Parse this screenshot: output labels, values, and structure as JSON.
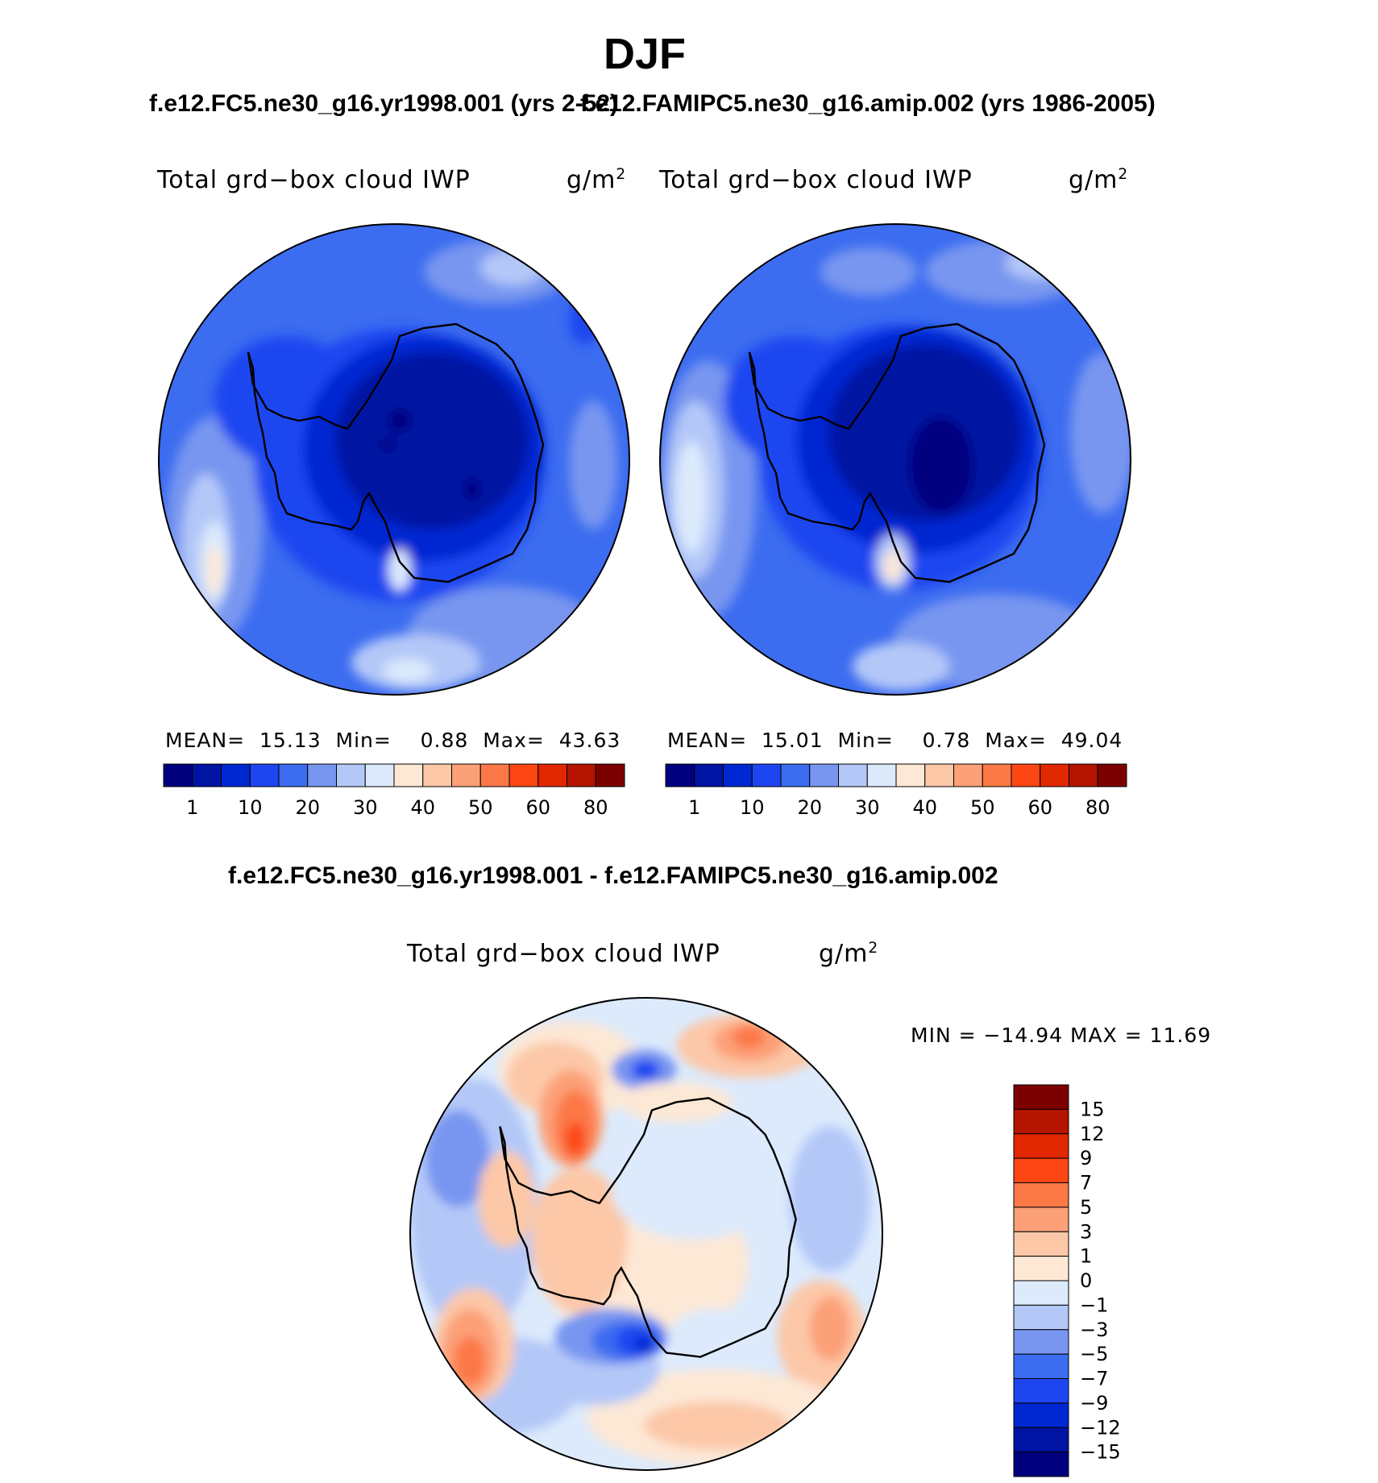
{
  "figure": {
    "title": "DJF",
    "top_left_case": "f.e12.FC5.ne30_g16.yr1998.001 (yrs 2-52)",
    "top_right_case": "f.e12.FAMIPC5.ne30_g16.amip.002 (yrs 1986-2005)",
    "diff_case": "f.e12.FC5.ne30_g16.yr1998.001 - f.e12.FAMIPC5.ne30_g16.amip.002"
  },
  "panels": [
    {
      "variable": "Total grd−box cloud IWP",
      "units": "g/m",
      "units_sup": "2",
      "mean_label": "MEAN=",
      "mean": "15.13",
      "min_label": "Min=",
      "min": "0.88",
      "max_label": "Max=",
      "max": "43.63"
    },
    {
      "variable": "Total grd−box cloud IWP",
      "units": "g/m",
      "units_sup": "2",
      "mean_label": "MEAN=",
      "mean": "15.01",
      "min_label": "Min=",
      "min": "0.78",
      "max_label": "Max=",
      "max": "49.04"
    },
    {
      "variable": "Total grd−box cloud IWP",
      "units": "g/m",
      "units_sup": "2",
      "minmax_text": "MIN = −14.94 MAX =  11.69"
    }
  ],
  "colorbar_abs": {
    "colors": [
      "#00007f",
      "#0014a3",
      "#0028d2",
      "#1e46f0",
      "#3c6cf0",
      "#7896f0",
      "#b4c8f8",
      "#dceafc",
      "#fde8d6",
      "#fcc8a8",
      "#fca078",
      "#fc7846",
      "#fc4614",
      "#e12800",
      "#b41400",
      "#7d0000"
    ],
    "labels": [
      "1",
      "10",
      "20",
      "30",
      "40",
      "50",
      "60",
      "80"
    ]
  },
  "colorbar_diff": {
    "colors": [
      "#00007f",
      "#0014a3",
      "#0028d2",
      "#1e46f0",
      "#3c6cf0",
      "#7896f0",
      "#b4c8f8",
      "#dceafc",
      "#fde8d6",
      "#fcc8a8",
      "#fca078",
      "#fc7846",
      "#fc4614",
      "#e12800",
      "#b41400",
      "#7d0000"
    ],
    "labels": [
      "15",
      "12",
      "9",
      "7",
      "5",
      "3",
      "1",
      "0",
      "−1",
      "−3",
      "−5",
      "−7",
      "−9",
      "−12",
      "−15"
    ]
  }
}
